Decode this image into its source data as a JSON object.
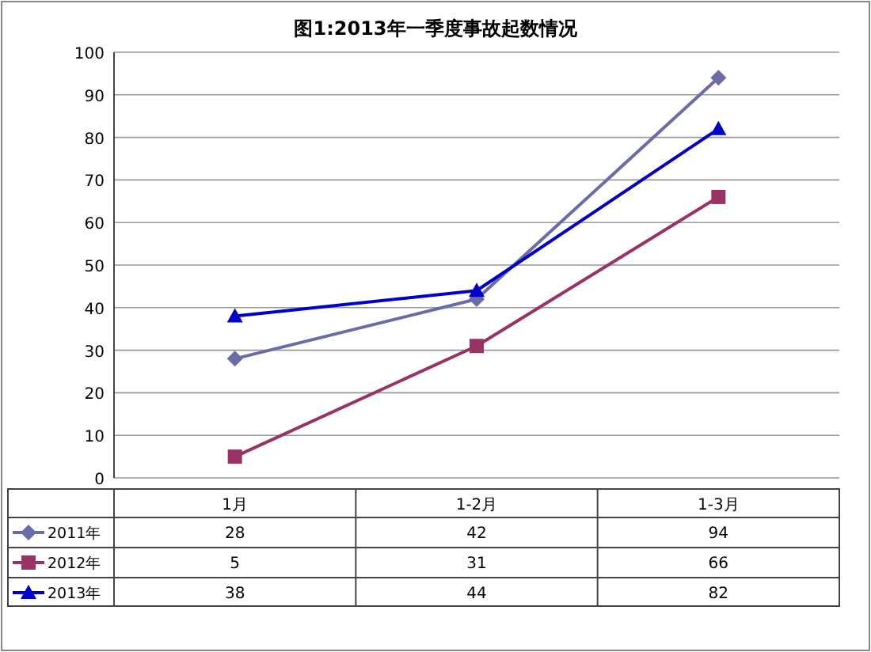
{
  "chart_data": {
    "type": "line",
    "title": "图1:2013年一季度事故起数情况",
    "categories": [
      "1月",
      "1-2月",
      "1-3月"
    ],
    "series": [
      {
        "name": "2011年",
        "color": "#6b6ba8",
        "values": [
          28,
          42,
          94
        ],
        "marker": "diamond"
      },
      {
        "name": "2012年",
        "color": "#993366",
        "values": [
          5,
          31,
          66
        ],
        "marker": "square"
      },
      {
        "name": "2013年",
        "color": "#0000cc",
        "values": [
          38,
          44,
          82
        ],
        "marker": "triangle"
      }
    ],
    "ylim": [
      0,
      100
    ],
    "yticks": [
      0,
      10,
      20,
      30,
      40,
      50,
      60,
      70,
      80,
      90,
      100
    ],
    "grid": "y",
    "data_labels": true,
    "legend": "bottom left"
  }
}
